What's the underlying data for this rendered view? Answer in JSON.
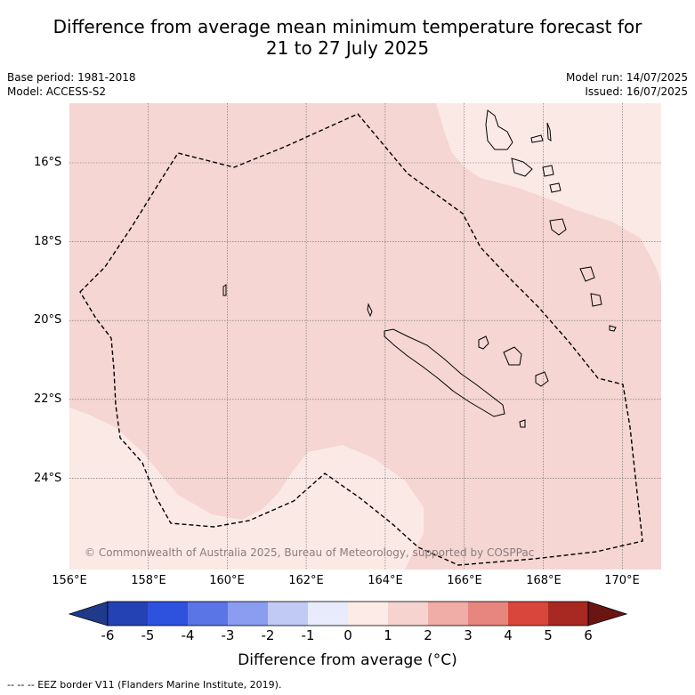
{
  "title_line1": "Difference from average mean minimum temperature forecast for",
  "title_line2": "21 to 27 July 2025",
  "base_period": "Base period: 1981-2018",
  "model": "Model: ACCESS-S2",
  "model_run": "Model run: 14/07/2025",
  "issued": "Issued: 16/07/2025",
  "map": {
    "lon_range": [
      156,
      171
    ],
    "lat_range": [
      -26.2,
      -14.4
    ],
    "lon_ticks": [
      "156°E",
      "158°E",
      "160°E",
      "162°E",
      "164°E",
      "166°E",
      "168°E",
      "170°E"
    ],
    "lat_ticks": [
      "16°S",
      "18°S",
      "20°S",
      "22°S",
      "24°S"
    ],
    "colors": {
      "anomaly_0_1": "#fbe9e6",
      "anomaly_1_2": "#f5d6d3",
      "land_outline": "#000000",
      "grid": "#555555"
    },
    "watermark": "© Commonwealth of Australia 2025, Bureau of Meteorology, supported by COSPPac"
  },
  "colorbar": {
    "labels": [
      "-6",
      "-5",
      "-4",
      "-3",
      "-2",
      "-1",
      "0",
      "1",
      "2",
      "3",
      "4",
      "5",
      "6"
    ],
    "colors": [
      "#1f3a8a",
      "#2542b5",
      "#2f52de",
      "#5a75e6",
      "#8a9df0",
      "#c1c9f5",
      "#e7ebfb",
      "#fdebe8",
      "#f7d3cf",
      "#f0aca6",
      "#e6867e",
      "#d9463c",
      "#a82822",
      "#6b1513"
    ],
    "title": "Difference from average (°C)"
  },
  "footer": "-- -- -- EEZ border V11 (Flanders Marine Institute, 2019)."
}
